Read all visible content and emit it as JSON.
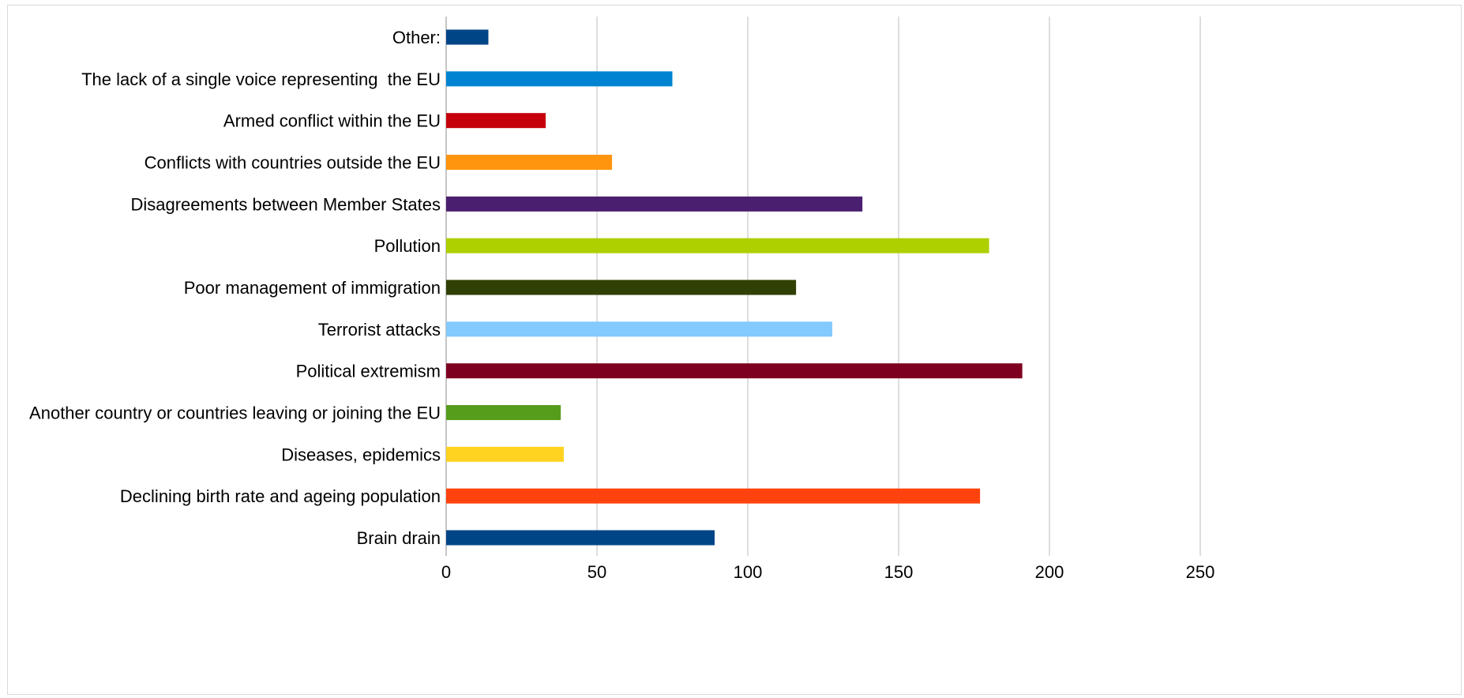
{
  "chart_data": {
    "type": "bar",
    "orientation": "horizontal",
    "title": "",
    "xlabel": "",
    "ylabel": "",
    "xlim": [
      0,
      250
    ],
    "x_ticks": [
      0,
      50,
      100,
      150,
      200,
      250
    ],
    "x_tick_labels": [
      "0",
      "50",
      "100",
      "150",
      "200",
      "250"
    ],
    "grid": true,
    "legend": "none",
    "categories": [
      "Brain drain",
      "Declining birth rate and ageing population",
      "Diseases, epidemics",
      "Another country or countries leaving or joining the EU",
      "Political extremism",
      "Terrorist attacks",
      "Poor management of immigration",
      "Pollution",
      "Disagreements between Member States",
      "Conflicts with countries outside the EU",
      "Armed conflict within the EU",
      "The lack of a single voice representing  the EU",
      "Other:"
    ],
    "values": [
      89,
      177,
      39,
      38,
      191,
      128,
      116,
      180,
      138,
      55,
      33,
      75,
      14
    ],
    "colors": [
      "#004586",
      "#ff420e",
      "#ffd320",
      "#579d1c",
      "#7e0021",
      "#83caff",
      "#314004",
      "#aecf00",
      "#4b1f6f",
      "#ff950e",
      "#c5000b",
      "#0084d1",
      "#004586"
    ],
    "gridline_color": "#d3d3d3",
    "axis_color": "#b3b3b3"
  }
}
